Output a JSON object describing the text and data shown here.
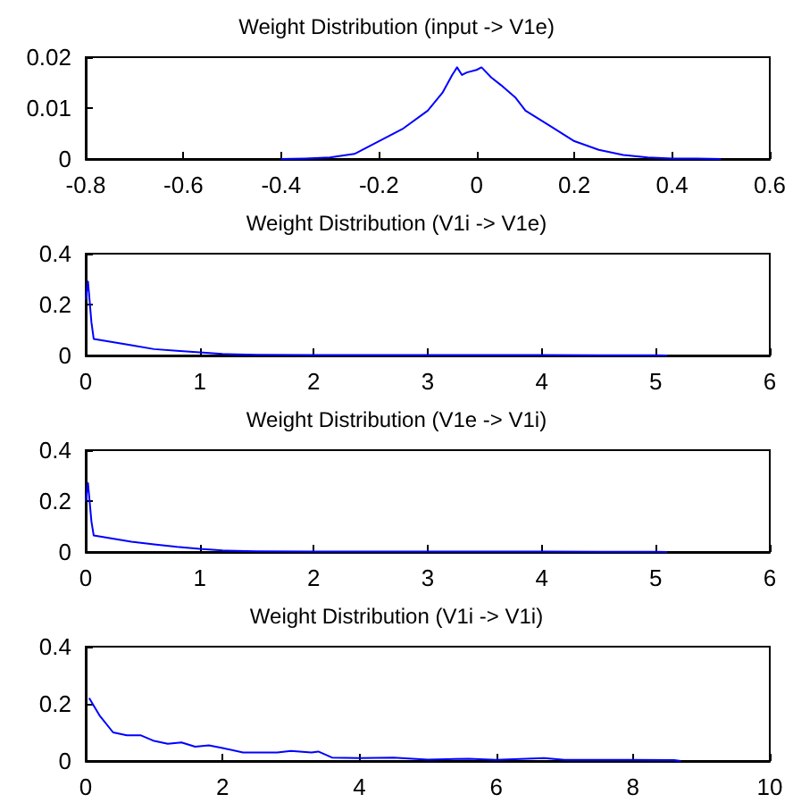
{
  "chart_data": [
    {
      "type": "line",
      "title": "Weight Distribution (input -> V1e)",
      "x": [
        -0.4,
        -0.35,
        -0.3,
        -0.25,
        -0.2,
        -0.15,
        -0.1,
        -0.07,
        -0.05,
        -0.04,
        -0.03,
        -0.02,
        0,
        0.01,
        0.03,
        0.05,
        0.08,
        0.1,
        0.15,
        0.2,
        0.25,
        0.3,
        0.35,
        0.4,
        0.45,
        0.5
      ],
      "series": [
        {
          "color": "#0000ff",
          "values": [
            0,
            0.0001,
            0.0003,
            0.001,
            0.0035,
            0.006,
            0.0095,
            0.013,
            0.0165,
            0.018,
            0.0165,
            0.017,
            0.0175,
            0.018,
            0.016,
            0.0145,
            0.012,
            0.0095,
            0.0065,
            0.0035,
            0.0018,
            0.0008,
            0.0003,
            0.0001,
            0.0001,
            0
          ]
        }
      ],
      "xlim": [
        -0.8,
        0.6
      ],
      "xticks": [
        -0.8,
        -0.6,
        -0.4,
        -0.2,
        0,
        0.2,
        0.4,
        0.6
      ],
      "ylim": [
        0,
        0.02
      ],
      "yticks": [
        0,
        0.01,
        0.02
      ],
      "grid": false,
      "marker": "none",
      "line_style": "solid"
    },
    {
      "type": "line",
      "title": "Weight Distribution (V1i -> V1e)",
      "x": [
        0,
        0.02,
        0.05,
        0.07,
        0.2,
        0.4,
        0.6,
        0.8,
        1.0,
        1.2,
        1.5,
        2,
        3,
        4,
        4.5,
        5,
        5.1
      ],
      "series": [
        {
          "color": "#0000ff",
          "values": [
            0.22,
            0.29,
            0.13,
            0.065,
            0.055,
            0.04,
            0.025,
            0.018,
            0.012,
            0.006,
            0.003,
            0.002,
            0.002,
            0.002,
            0.001,
            0.001,
            0
          ]
        }
      ],
      "xlim": [
        0,
        6
      ],
      "xticks": [
        0,
        1,
        2,
        3,
        4,
        5,
        6
      ],
      "ylim": [
        0,
        0.4
      ],
      "yticks": [
        0,
        0.2,
        0.4
      ],
      "grid": false,
      "marker": "none",
      "line_style": "solid"
    },
    {
      "type": "line",
      "title": "Weight Distribution (V1e -> V1i)",
      "x": [
        0,
        0.02,
        0.05,
        0.07,
        0.2,
        0.4,
        0.6,
        0.8,
        1.0,
        1.2,
        1.5,
        2,
        3,
        4,
        4.5,
        5,
        5.1
      ],
      "series": [
        {
          "color": "#0000ff",
          "values": [
            0.2,
            0.27,
            0.12,
            0.065,
            0.055,
            0.04,
            0.03,
            0.02,
            0.012,
            0.006,
            0.003,
            0.002,
            0.002,
            0.002,
            0.001,
            0.001,
            0
          ]
        }
      ],
      "xlim": [
        0,
        6
      ],
      "xticks": [
        0,
        1,
        2,
        3,
        4,
        5,
        6
      ],
      "ylim": [
        0,
        0.4
      ],
      "yticks": [
        0,
        0.2,
        0.4
      ],
      "grid": false,
      "marker": "none",
      "line_style": "solid"
    },
    {
      "type": "line",
      "title": "Weight Distribution (V1i -> V1i)",
      "x": [
        0.05,
        0.2,
        0.4,
        0.6,
        0.8,
        1,
        1.2,
        1.4,
        1.6,
        1.8,
        2,
        2.3,
        2.8,
        3,
        3.3,
        3.4,
        3.6,
        4,
        4.5,
        5,
        5.6,
        6,
        6.7,
        7,
        8,
        8.6,
        8.7
      ],
      "series": [
        {
          "color": "#0000ff",
          "values": [
            0.22,
            0.16,
            0.1,
            0.09,
            0.09,
            0.07,
            0.06,
            0.065,
            0.05,
            0.055,
            0.045,
            0.03,
            0.03,
            0.035,
            0.03,
            0.033,
            0.012,
            0.01,
            0.012,
            0.005,
            0.008,
            0.004,
            0.01,
            0.004,
            0.004,
            0.003,
            0
          ]
        }
      ],
      "xlim": [
        0,
        10
      ],
      "xticks": [
        0,
        2,
        4,
        6,
        8,
        10
      ],
      "ylim": [
        0,
        0.4
      ],
      "yticks": [
        0,
        0.2,
        0.4
      ],
      "grid": false,
      "marker": "none",
      "line_style": "solid"
    }
  ]
}
